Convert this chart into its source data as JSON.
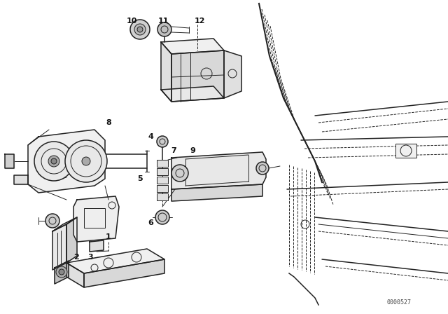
{
  "bg_color": "#ffffff",
  "line_color": "#222222",
  "label_color": "#111111",
  "figsize": [
    6.4,
    4.48
  ],
  "dpi": 100,
  "code": "0000527"
}
